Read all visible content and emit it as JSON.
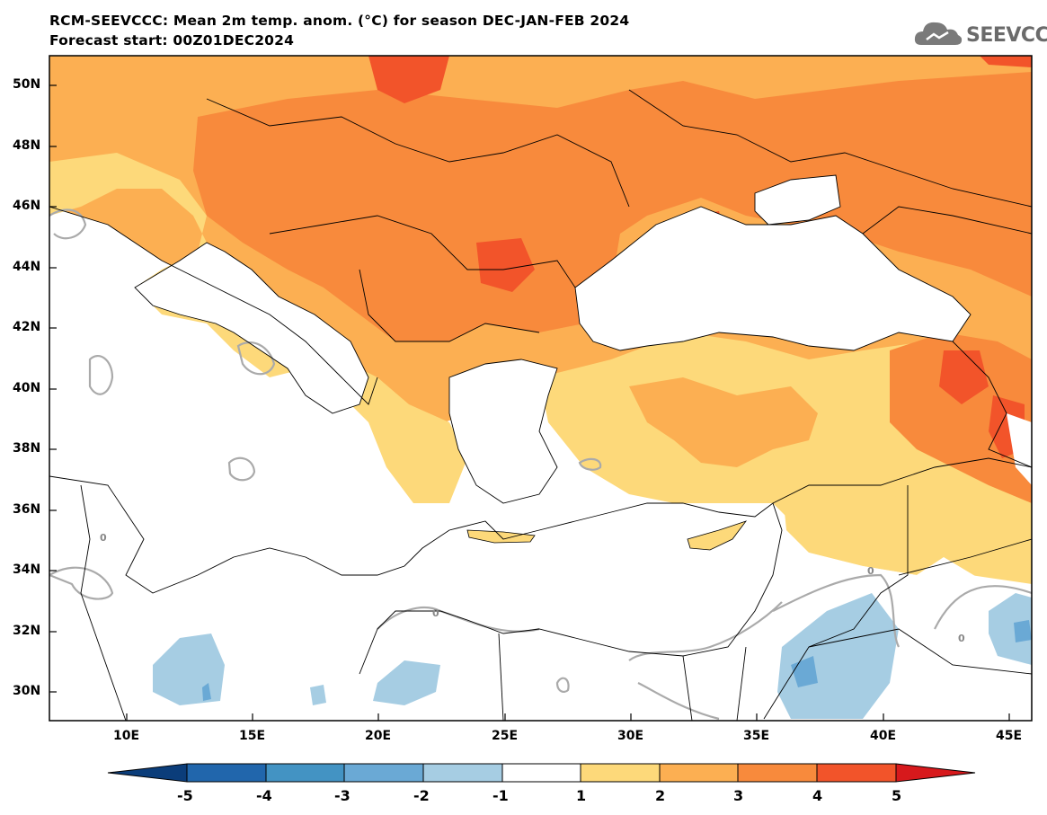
{
  "header": {
    "title_line1": "RCM-SEEVCCC: Mean 2m temp. anom. (°C) for season DEC-JAN-FEB 2024",
    "title_line2": "Forecast start: 00Z01DEC2024",
    "logo_text": "SEEVCCC"
  },
  "map": {
    "lat_labels": [
      "50N",
      "48N",
      "46N",
      "44N",
      "42N",
      "40N",
      "38N",
      "36N",
      "34N",
      "32N",
      "30N"
    ],
    "lon_labels": [
      "10E",
      "15E",
      "20E",
      "25E",
      "30E",
      "35E",
      "40E",
      "45E"
    ],
    "contour_label": "0"
  },
  "colorbar": {
    "labels": [
      "-5",
      "-4",
      "-3",
      "-2",
      "-1",
      "1",
      "2",
      "3",
      "4",
      "5"
    ],
    "colors": [
      "#0b3d7a",
      "#2166ac",
      "#4393c3",
      "#6aa9d5",
      "#a6cde3",
      "#ffffff",
      "#fdd97a",
      "#fcaf52",
      "#f88a3c",
      "#f2542a",
      "#d7191c"
    ]
  }
}
